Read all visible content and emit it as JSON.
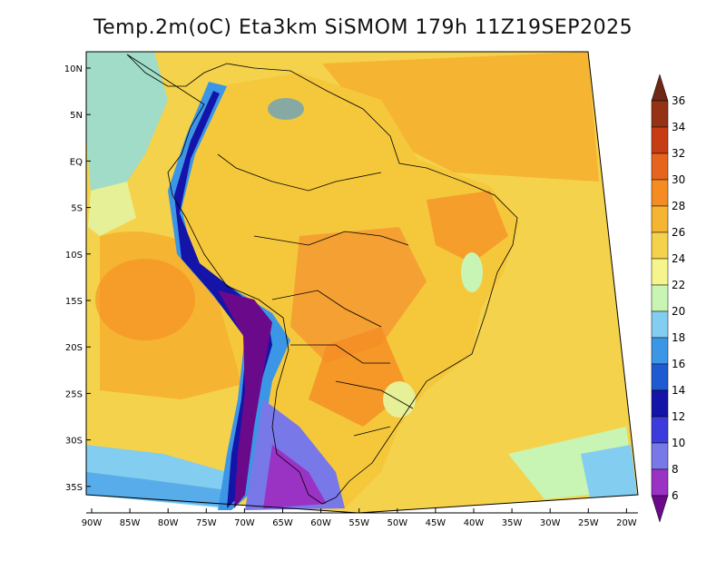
{
  "title": "Temp.2m(oC) Eta3km SiSMOM 179h 11Z19SEP2025",
  "lat_labels": [
    "10N",
    "5N",
    "EQ",
    "5S",
    "10S",
    "15S",
    "20S",
    "25S",
    "30S",
    "35S"
  ],
  "lon_labels": [
    "90W",
    "85W",
    "80W",
    "75W",
    "70W",
    "65W",
    "60W",
    "55W",
    "50W",
    "45W",
    "40W",
    "35W",
    "30W",
    "25W",
    "20W"
  ],
  "colorbar": {
    "labels": [
      "6",
      "8",
      "10",
      "12",
      "14",
      "16",
      "18",
      "20",
      "22",
      "24",
      "26",
      "28",
      "30",
      "32",
      "34",
      "36"
    ],
    "colors": [
      "#6a0a8a",
      "#9a32c4",
      "#7878e8",
      "#3c3cdc",
      "#1414a8",
      "#1e5ad2",
      "#3c96e6",
      "#82cdf0",
      "#c8f5b4",
      "#f5f58c",
      "#f5d24b",
      "#f5b432",
      "#f58c23",
      "#e6641e",
      "#c83c14",
      "#963214",
      "#6e2814"
    ]
  }
}
